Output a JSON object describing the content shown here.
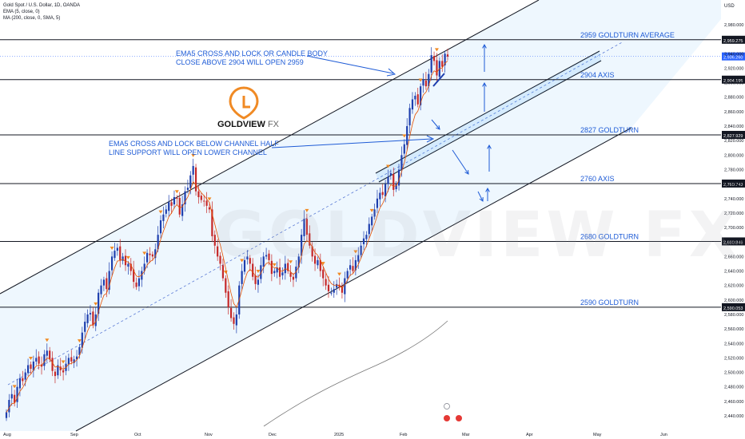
{
  "header": {
    "symbol_line": "Gold Spot / U.S. Dollar, 1D, OANDA",
    "ema_line": "EMA (5, close, 0)",
    "ma_line": "MA (200, close, 0, SMA, 5)",
    "currency": "USD"
  },
  "logo": {
    "brand_bold": "GOLDVIEW",
    "brand_light": " FX"
  },
  "watermark": "GOLDVIEW FX",
  "chart_data": {
    "type": "candlestick",
    "instrument": "Gold Spot / U.S. Dollar",
    "timeframe": "1D",
    "ylim": [
      2430,
      3010
    ],
    "y_ticks": [
      2440,
      2460,
      2480,
      2500,
      2520,
      2540,
      2560,
      2580,
      2600,
      2620,
      2640,
      2660,
      2680,
      2700,
      2720,
      2740,
      2760,
      2780,
      2800,
      2820,
      2840,
      2860,
      2880,
      2900,
      2920,
      2940,
      2980
    ],
    "x_ticks": [
      "Aug",
      "Sep",
      "Oct",
      "Nov",
      "Dec",
      "2025",
      "Feb",
      "Mar",
      "Apr",
      "May",
      "Jun"
    ],
    "levels": [
      {
        "value": 2959.275,
        "label": "2959 GOLDTURN AVERAGE",
        "price_label": "2,959.275"
      },
      {
        "value": 2904.195,
        "label": "2904 AXIS",
        "price_label": "2,904.195"
      },
      {
        "value": 2827.929,
        "label": "2827 GOLDTURN",
        "price_label": "2,827.929"
      },
      {
        "value": 2760.743,
        "label": "2760 AXIS",
        "price_label": "2,760.743"
      },
      {
        "value": 2680.846,
        "label": "2680 GOLDTURN",
        "price_label": "2,680.846"
      },
      {
        "value": 2590.053,
        "label": "2590 GOLDTURN",
        "price_label": "2,590.053"
      }
    ],
    "current_price": {
      "value": 2936.26,
      "price_label": "2,936.260"
    },
    "annotations": [
      {
        "line1": "EMA5 CROSS AND LOCK OR CANDLE BODY",
        "line2": "CLOSE ABOVE 2904 WILL OPEN 2959"
      },
      {
        "line1": "EMA5 CROSS AND LOCK BELOW CHANNEL HALF",
        "line2": "LINE SUPPORT WILL OPEN LOWER CHANNEL"
      }
    ],
    "closes": [
      2445,
      2462,
      2470,
      2458,
      2480,
      2492,
      2488,
      2500,
      2510,
      2505,
      2515,
      2520,
      2512,
      2508,
      2525,
      2530,
      2518,
      2502,
      2495,
      2510,
      2503,
      2500,
      2512,
      2520,
      2515,
      2518,
      2522,
      2535,
      2555,
      2570,
      2580,
      2582,
      2565,
      2580,
      2610,
      2620,
      2628,
      2615,
      2640,
      2660,
      2668,
      2672,
      2655,
      2660,
      2648,
      2650,
      2640,
      2625,
      2618,
      2630,
      2640,
      2650,
      2665,
      2662,
      2660,
      2670,
      2690,
      2710,
      2718,
      2725,
      2735,
      2730,
      2742,
      2740,
      2718,
      2732,
      2750,
      2755,
      2772,
      2785,
      2750,
      2742,
      2738,
      2736,
      2730,
      2725,
      2688,
      2675,
      2660,
      2650,
      2630,
      2610,
      2590,
      2575,
      2567,
      2580,
      2620,
      2640,
      2655,
      2660,
      2650,
      2632,
      2622,
      2628,
      2648,
      2660,
      2662,
      2655,
      2636,
      2640,
      2645,
      2632,
      2638,
      2650,
      2640,
      2632,
      2628,
      2646,
      2660,
      2690,
      2712,
      2690,
      2675,
      2660,
      2650,
      2655,
      2640,
      2630,
      2620,
      2612,
      2610,
      2615,
      2622,
      2618,
      2610,
      2630,
      2640,
      2648,
      2640,
      2655,
      2662,
      2675,
      2685,
      2690,
      2705,
      2715,
      2725,
      2740,
      2748,
      2745,
      2760,
      2770,
      2775,
      2752,
      2760,
      2780,
      2800,
      2815,
      2840,
      2865,
      2877,
      2882,
      2870,
      2895,
      2905,
      2895,
      2912,
      2938,
      2930,
      2910,
      2930,
      2922,
      2940,
      2936
    ]
  }
}
